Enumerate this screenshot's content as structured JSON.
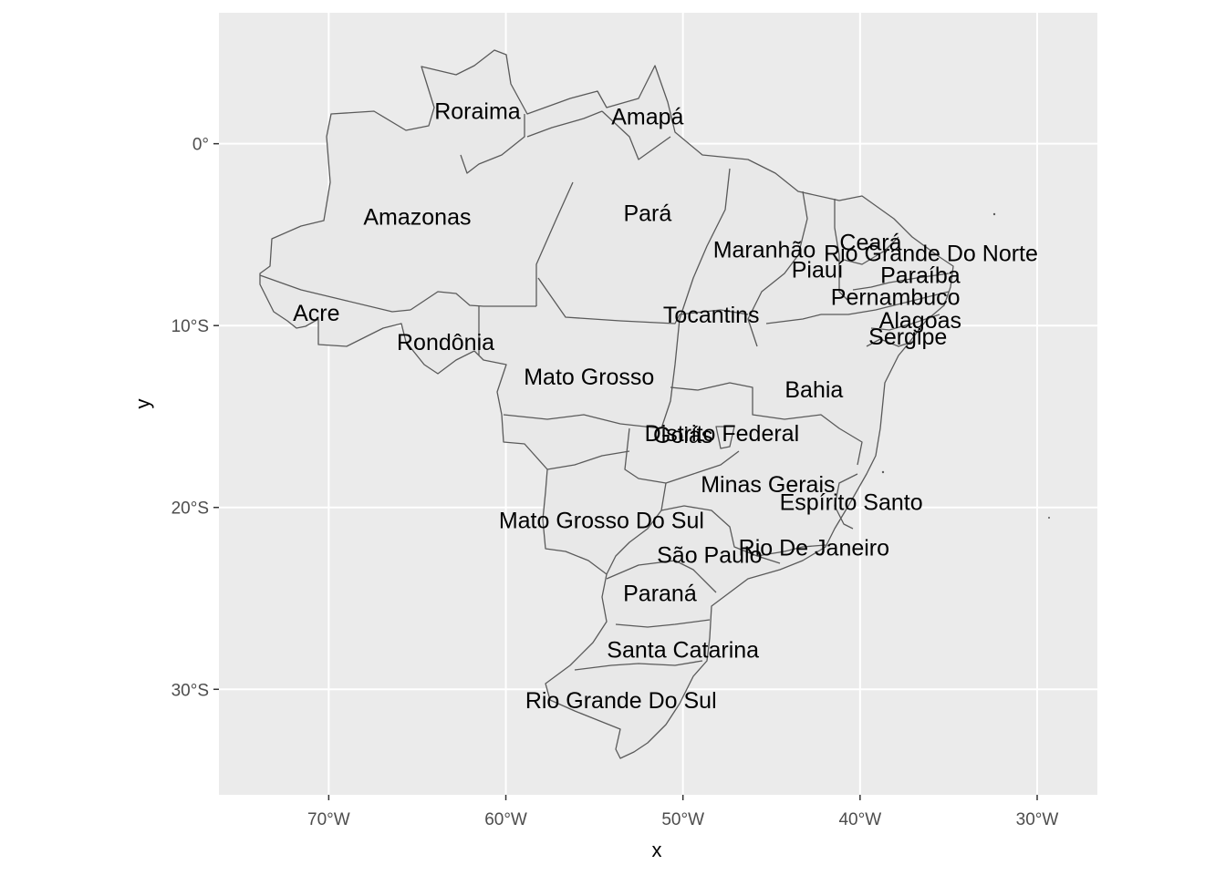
{
  "plot": {
    "xlabel": "x",
    "ylabel": "y",
    "x_ticks": [
      {
        "value": -70,
        "label": "70°W"
      },
      {
        "value": -60,
        "label": "60°W"
      },
      {
        "value": -50,
        "label": "50°W"
      },
      {
        "value": -40,
        "label": "40°W"
      },
      {
        "value": -30,
        "label": "30°W"
      }
    ],
    "y_ticks": [
      {
        "value": 0,
        "label": "0°"
      },
      {
        "value": -10,
        "label": "10°S"
      },
      {
        "value": -20,
        "label": "20°S"
      },
      {
        "value": -30,
        "label": "30°S"
      }
    ],
    "xlim": [
      -76.2,
      -26.6
    ],
    "ylim": [
      -35.8,
      7.2
    ],
    "panel_color": "#ebebeb",
    "grid_color": "#ffffff",
    "fill_color": "#e8e8e8",
    "border_color": "#5a5a5a"
  },
  "states": [
    {
      "name": "Amazonas",
      "lon": -65.0,
      "lat": -4.0
    },
    {
      "name": "Roraima",
      "lon": -61.6,
      "lat": 1.8
    },
    {
      "name": "Amapá",
      "lon": -52.0,
      "lat": 1.5
    },
    {
      "name": "Pará",
      "lon": -52.0,
      "lat": -3.8
    },
    {
      "name": "Acre",
      "lon": -70.7,
      "lat": -9.3
    },
    {
      "name": "Rondônia",
      "lon": -63.4,
      "lat": -10.9
    },
    {
      "name": "Mato Grosso",
      "lon": -55.3,
      "lat": -12.8
    },
    {
      "name": "Tocantins",
      "lon": -48.4,
      "lat": -9.4
    },
    {
      "name": "Maranhão",
      "lon": -45.4,
      "lat": -5.8
    },
    {
      "name": "Piauí",
      "lon": -42.4,
      "lat": -6.9
    },
    {
      "name": "Ceará",
      "lon": -39.4,
      "lat": -5.4
    },
    {
      "name": "Rio Grande Do Norte",
      "lon": -36.0,
      "lat": -6.0
    },
    {
      "name": "Paraíba",
      "lon": -36.6,
      "lat": -7.2
    },
    {
      "name": "Pernambuco",
      "lon": -38.0,
      "lat": -8.4
    },
    {
      "name": "Alagoas",
      "lon": -36.6,
      "lat": -9.7
    },
    {
      "name": "Sergipe",
      "lon": -37.3,
      "lat": -10.6
    },
    {
      "name": "Bahia",
      "lon": -42.6,
      "lat": -13.5
    },
    {
      "name": "Distrito Federal",
      "lon": -47.8,
      "lat": -15.9
    },
    {
      "name": "Goiás",
      "lon": -50.0,
      "lat": -16.0
    },
    {
      "name": "Minas Gerais",
      "lon": -45.2,
      "lat": -18.7
    },
    {
      "name": "Espírito Santo",
      "lon": -40.5,
      "lat": -19.7
    },
    {
      "name": "Mato Grosso Do Sul",
      "lon": -54.6,
      "lat": -20.7
    },
    {
      "name": "São Paulo",
      "lon": -48.5,
      "lat": -22.6
    },
    {
      "name": "Rio De Janeiro",
      "lon": -42.6,
      "lat": -22.2
    },
    {
      "name": "Paraná",
      "lon": -51.3,
      "lat": -24.7
    },
    {
      "name": "Santa Catarina",
      "lon": -50.0,
      "lat": -27.8
    },
    {
      "name": "Rio Grande Do Sul",
      "lon": -53.5,
      "lat": -30.6
    }
  ]
}
